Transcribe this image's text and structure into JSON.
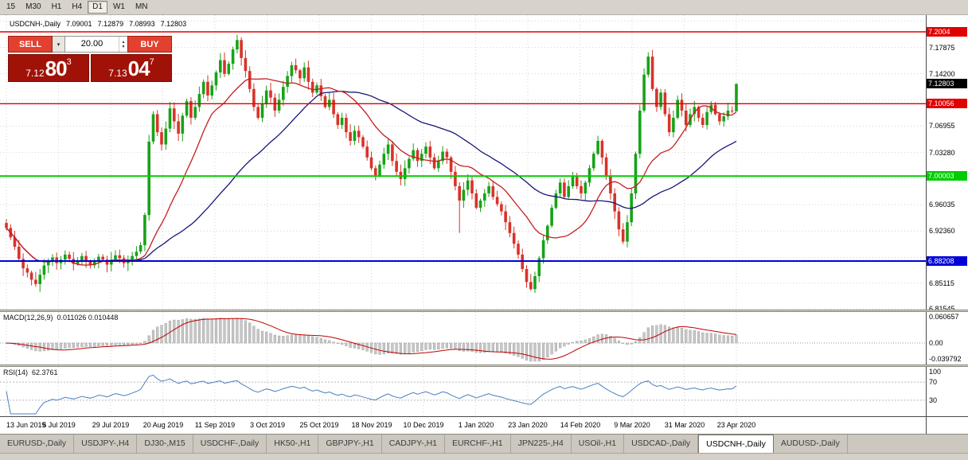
{
  "toolbar": {
    "items": [
      "15",
      "M30",
      "H1",
      "H4",
      "D1",
      "W1",
      "MN"
    ],
    "active": "D1"
  },
  "chart_header": {
    "symbol": "USDCNH-,Daily",
    "o": "7.09001",
    "h": "7.12879",
    "l": "7.08993",
    "c": "7.12803"
  },
  "trade_panel": {
    "sell_label": "SELL",
    "buy_label": "BUY",
    "volume": "20.00",
    "sell_price": {
      "small": "7.12",
      "big": "80",
      "sup": "3"
    },
    "buy_price": {
      "small": "7.13",
      "big": "04",
      "sup": "7"
    }
  },
  "colors": {
    "up": "#17a317",
    "down": "#d8332a",
    "ma_fast": "#c41e1e",
    "ma_slow": "#161678",
    "macd_hist": "#c6c6c6",
    "macd_hist_border": "#989898",
    "macd_signal": "#c00000",
    "rsi_line": "#4a7fc1",
    "sell_button": "#e2412f",
    "buy_button": "#e2412f",
    "price_panel": "#a01208"
  },
  "chart_data": {
    "type": "candlestick",
    "symbol": "USDCNH",
    "timeframe": "Daily",
    "y_range": [
      6.8146,
      7.2236
    ],
    "y_ticks": [
      {
        "v": 7.17875,
        "label": "7.17875"
      },
      {
        "v": 7.142,
        "label": "7.14200"
      },
      {
        "v": 7.06955,
        "label": "7.06955"
      },
      {
        "v": 7.0328,
        "label": "7.03280"
      },
      {
        "v": 6.96035,
        "label": "6.96035"
      },
      {
        "v": 6.9236,
        "label": "6.92360"
      },
      {
        "v": 6.85115,
        "label": "6.85115"
      },
      {
        "v": 6.81545,
        "label": "6.81545"
      }
    ],
    "grid_prices": [
      7.2155,
      7.17875,
      7.142,
      7.10525,
      7.06955,
      7.0328,
      6.99658,
      6.96035,
      6.9236,
      6.88685,
      6.85115,
      6.81545
    ],
    "levels": [
      {
        "v": 7.2004,
        "label": "7.2004",
        "color": "#e00000",
        "width": 1.4
      },
      {
        "v": 7.10056,
        "label": "7.10056",
        "color": "#e00000",
        "width": 1.4
      },
      {
        "v": 7.00003,
        "label": "7.00003",
        "color": "#00cc00",
        "width": 2
      },
      {
        "v": 6.88208,
        "label": "6.88208",
        "color": "#0000d8",
        "width": 2
      }
    ],
    "current_price": {
      "v": 7.12803,
      "label": "7.12803"
    },
    "x_labels": [
      "13 Jun 2019",
      "5 Jul 2019",
      "29 Jul 2019",
      "20 Aug 2019",
      "11 Sep 2019",
      "3 Oct 2019",
      "25 Oct 2019",
      "18 Nov 2019",
      "10 Dec 2019",
      "1 Jan 2020",
      "23 Jan 2020",
      "14 Feb 2020",
      "9 Mar 2020",
      "31 Mar 2020",
      "23 Apr 2020"
    ],
    "first_open": 6.935,
    "ma_fast_period": 16,
    "ma_slow_period": 42,
    "closes": [
      6.928,
      6.915,
      6.902,
      6.885,
      6.872,
      6.866,
      6.856,
      6.85,
      6.863,
      6.876,
      6.881,
      6.887,
      6.879,
      6.884,
      6.891,
      6.885,
      6.878,
      6.883,
      6.889,
      6.882,
      6.876,
      6.881,
      6.888,
      6.884,
      6.877,
      6.884,
      6.89,
      6.886,
      6.879,
      6.883,
      6.889,
      6.895,
      6.904,
      6.946,
      7.048,
      7.086,
      7.061,
      7.044,
      7.066,
      7.094,
      7.076,
      7.059,
      7.084,
      7.104,
      7.081,
      7.096,
      7.114,
      7.131,
      7.112,
      7.126,
      7.144,
      7.161,
      7.142,
      7.156,
      7.176,
      7.189,
      7.164,
      7.146,
      7.121,
      7.096,
      7.081,
      7.101,
      7.119,
      7.109,
      7.091,
      7.106,
      7.124,
      7.139,
      7.154,
      7.147,
      7.136,
      7.151,
      7.131,
      7.116,
      7.126,
      7.111,
      7.096,
      7.106,
      7.086,
      7.071,
      7.081,
      7.061,
      7.049,
      7.063,
      7.054,
      7.041,
      7.026,
      7.011,
      7.001,
      7.016,
      7.031,
      7.044,
      7.021,
      7.006,
      6.996,
      7.011,
      7.024,
      7.036,
      7.021,
      7.031,
      7.041,
      7.026,
      7.011,
      7.021,
      7.034,
      7.026,
      7.006,
      6.986,
      6.966,
      6.981,
      6.994,
      6.976,
      6.956,
      6.966,
      6.976,
      6.986,
      6.971,
      6.961,
      6.951,
      6.936,
      6.921,
      6.906,
      6.891,
      6.871,
      6.853,
      6.843,
      6.861,
      6.886,
      6.911,
      6.931,
      6.956,
      6.976,
      6.991,
      6.971,
      6.986,
      6.999,
      6.986,
      6.976,
      6.991,
      7.011,
      7.031,
      7.049,
      7.026,
      7.001,
      6.976,
      6.951,
      6.926,
      6.909,
      6.936,
      6.976,
      7.031,
      7.091,
      7.141,
      7.166,
      7.121,
      7.096,
      7.116,
      7.086,
      7.061,
      7.081,
      7.106,
      7.091,
      7.071,
      7.086,
      7.096,
      7.081,
      7.071,
      7.089,
      7.099,
      7.086,
      7.076,
      7.083,
      7.091,
      7.09,
      7.128
    ],
    "overrides": {
      "55": {
        "h": 7.1965
      },
      "108": {
        "l": 6.921
      },
      "125": {
        "l": 6.841
      },
      "153": {
        "h": 7.172
      },
      "174": {
        "o": 7.09001,
        "h": 7.12879,
        "l": 7.08993,
        "c": 7.12803
      }
    }
  },
  "indicators": {
    "macd": {
      "label": "MACD(12,26,9)",
      "values": "0.011026 0.010448",
      "axis_top": "0.060657",
      "axis_zero": "0.00",
      "axis_bottom": "-0.039792",
      "range": [
        -0.0398,
        0.0607
      ],
      "fast": 12,
      "slow": 26,
      "signal": 9
    },
    "rsi": {
      "label": "RSI(14)",
      "value": "62.3761",
      "axis_top": "100",
      "axis_mid": "70",
      "axis_bottom": "30",
      "levels": [
        70,
        30
      ],
      "period": 14
    }
  },
  "bottom_tabs": {
    "items": [
      "EURUSD-,Daily",
      "USDJPY-,H4",
      "DJ30-,M15",
      "USDCHF-,Daily",
      "HK50-,H1",
      "GBPJPY-,H1",
      "CADJPY-,H1",
      "EURCHF-,H1",
      "JPN225-,H4",
      "USOil-,H1",
      "USDCAD-,Daily",
      "USDCNH-,Daily",
      "AUDUSD-,Daily"
    ],
    "active_index": 11
  }
}
